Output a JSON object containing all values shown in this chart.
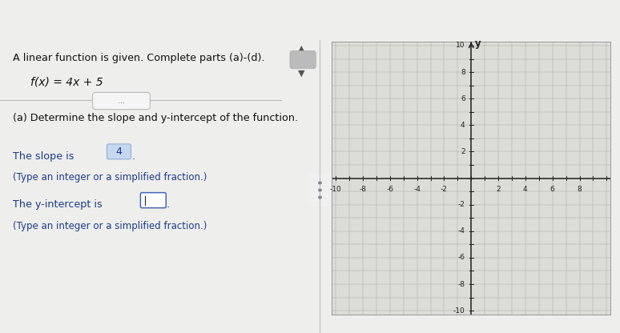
{
  "title_text": "A linear function is given. Complete parts (a)-(d).",
  "function_text": "f(x) = 4x + 5",
  "part_a_header": "(a) Determine the slope and y-intercept of the function.",
  "slope_line2": "(Type an integer or a simplified fraction.)",
  "intercept_line2": "(Type an integer or a simplified fraction.)",
  "slope_value": "4",
  "bg_color_left": "#eeeeec",
  "bg_color_right": "#e0e0dc",
  "header_color": "#1a7abf",
  "grid_color": "#aaaaaa",
  "axis_color": "#222222",
  "text_color_dark": "#111111",
  "text_color_blue": "#1a3a8a",
  "highlight_bg": "#c5d8f0",
  "highlight_border": "#7a9fd4",
  "yint_box_border": "#4466bb",
  "divider_line_color": "#bbbbbb",
  "x_min": -10,
  "x_max": 10,
  "y_min": -10,
  "y_max": 10,
  "x_ticks": [
    -10,
    -8,
    -6,
    -4,
    -2,
    2,
    4,
    6,
    8
  ],
  "y_ticks": [
    -10,
    -8,
    -6,
    -4,
    -2,
    2,
    4,
    6,
    8,
    10
  ],
  "divider_text": "..."
}
